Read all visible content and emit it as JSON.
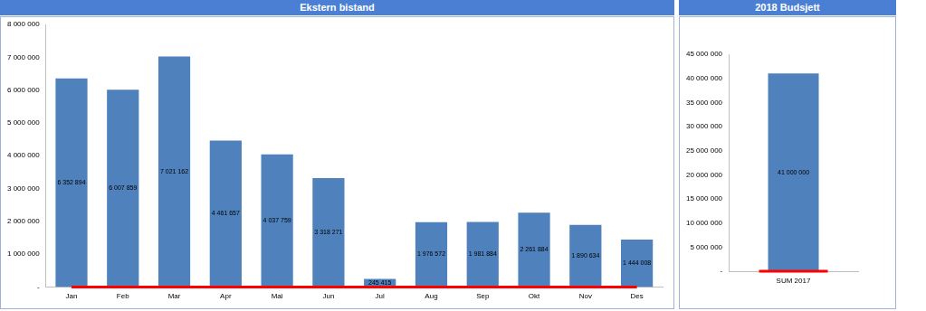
{
  "chart_data": [
    {
      "type": "bar",
      "title": "Ekstern bistand",
      "categories": [
        "Jan",
        "Feb",
        "Mar",
        "Apr",
        "Mai",
        "Jun",
        "Jul",
        "Aug",
        "Sep",
        "Okt",
        "Nov",
        "Des"
      ],
      "series": [
        {
          "type": "bar",
          "color": "#4f81bd",
          "values": [
            6352894,
            6007859,
            7021162,
            4461657,
            4037759,
            3318271,
            245415,
            1976572,
            1981884,
            2261884,
            1890634,
            1444008
          ],
          "value_labels": [
            "6 352 894",
            "6 007 859",
            "7 021 162",
            "4 461 657",
            "4 037 759",
            "3 318 271",
            "245 415",
            "1 976 572",
            "1 981 884",
            "2 261 884",
            "1 890 634",
            "1 444 008"
          ]
        },
        {
          "type": "line",
          "color": "#ff0000",
          "values": [
            0,
            0,
            0,
            0,
            0,
            0,
            0,
            0,
            0,
            0,
            0,
            0
          ]
        }
      ],
      "ylim": [
        0,
        8000000
      ],
      "yticks": [
        {
          "value": 0,
          "label": "-"
        },
        {
          "value": 1000000,
          "label": "1 000 000"
        },
        {
          "value": 2000000,
          "label": "2 000 000"
        },
        {
          "value": 3000000,
          "label": "3 000 000"
        },
        {
          "value": 4000000,
          "label": "4 000 000"
        },
        {
          "value": 5000000,
          "label": "5 000 000"
        },
        {
          "value": 6000000,
          "label": "6 000 000"
        },
        {
          "value": 7000000,
          "label": "7 000 000"
        },
        {
          "value": 8000000,
          "label": "8 000 000"
        }
      ],
      "grid": false,
      "data_labels": true
    },
    {
      "type": "bar",
      "title": "2018 Budsjett",
      "categories": [
        "SUM 2017"
      ],
      "series": [
        {
          "type": "bar",
          "color": "#4f81bd",
          "values": [
            41000000
          ],
          "value_labels": [
            "41 000 000"
          ]
        },
        {
          "type": "line",
          "color": "#ff0000",
          "values": [
            0
          ]
        }
      ],
      "ylim": [
        0,
        45000000
      ],
      "yticks": [
        {
          "value": 0,
          "label": "-"
        },
        {
          "value": 5000000,
          "label": "5 000 000"
        },
        {
          "value": 10000000,
          "label": "10 000 000"
        },
        {
          "value": 15000000,
          "label": "15 000 000"
        },
        {
          "value": 20000000,
          "label": "20 000 000"
        },
        {
          "value": 25000000,
          "label": "25 000 000"
        },
        {
          "value": 30000000,
          "label": "30 000 000"
        },
        {
          "value": 35000000,
          "label": "35 000 000"
        },
        {
          "value": 40000000,
          "label": "40 000 000"
        },
        {
          "value": 45000000,
          "label": "45 000 000"
        }
      ],
      "grid": false,
      "data_labels": true
    }
  ]
}
